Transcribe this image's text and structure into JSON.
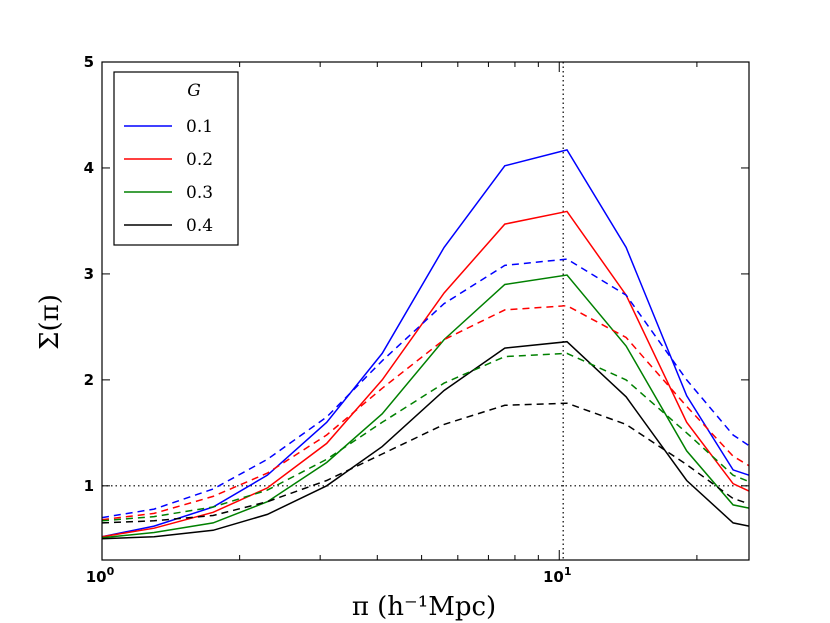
{
  "chart_data": {
    "type": "line",
    "xscale": "log",
    "xlim": [
      1,
      26
    ],
    "ylim": [
      0.3,
      5
    ],
    "xlabel": "π  (h⁻¹Mpc)",
    "ylabel": "Σ(π)",
    "xticks": [
      {
        "value": 1,
        "base": "10",
        "exp": "0"
      },
      {
        "value": 10,
        "base": "10",
        "exp": "1"
      }
    ],
    "yticks": [
      1,
      2,
      3,
      4,
      5
    ],
    "reference_lines": {
      "horizontal_y": 1,
      "vertical_x": 10.2
    },
    "legend": {
      "title": "G",
      "location": "top-left",
      "entries": [
        "0.1",
        "0.2",
        "0.3",
        "0.4"
      ]
    },
    "x": [
      1.0,
      1.3,
      1.75,
      2.3,
      3.1,
      4.1,
      5.6,
      7.6,
      10.4,
      14.0,
      19.0,
      24.0,
      26.0
    ],
    "series": [
      {
        "name": "0.1",
        "style": "solid",
        "color": "#0000ff",
        "values": [
          0.52,
          0.62,
          0.8,
          1.1,
          1.6,
          2.25,
          3.25,
          4.02,
          4.17,
          3.25,
          1.85,
          1.15,
          1.1
        ]
      },
      {
        "name": "0.2",
        "style": "solid",
        "color": "#ff0000",
        "values": [
          0.52,
          0.6,
          0.75,
          0.98,
          1.4,
          2.0,
          2.82,
          3.47,
          3.59,
          2.8,
          1.6,
          1.02,
          0.95
        ]
      },
      {
        "name": "0.3",
        "style": "solid",
        "color": "#008000",
        "values": [
          0.51,
          0.56,
          0.65,
          0.85,
          1.22,
          1.68,
          2.38,
          2.9,
          2.99,
          2.32,
          1.33,
          0.82,
          0.79
        ]
      },
      {
        "name": "0.4",
        "style": "solid",
        "color": "#000000",
        "values": [
          0.5,
          0.52,
          0.58,
          0.73,
          1.0,
          1.37,
          1.9,
          2.3,
          2.36,
          1.84,
          1.05,
          0.65,
          0.62
        ]
      },
      {
        "name": "0.1",
        "style": "dashed",
        "color": "#0000ff",
        "values": [
          0.7,
          0.78,
          0.97,
          1.25,
          1.65,
          2.18,
          2.72,
          3.08,
          3.14,
          2.8,
          2.0,
          1.48,
          1.38
        ]
      },
      {
        "name": "0.2",
        "style": "dashed",
        "color": "#ff0000",
        "values": [
          0.68,
          0.74,
          0.9,
          1.12,
          1.48,
          1.92,
          2.38,
          2.66,
          2.7,
          2.4,
          1.75,
          1.28,
          1.19
        ]
      },
      {
        "name": "0.3",
        "style": "dashed",
        "color": "#008000",
        "values": [
          0.67,
          0.71,
          0.8,
          0.96,
          1.25,
          1.6,
          1.97,
          2.22,
          2.25,
          2.0,
          1.5,
          1.1,
          1.04
        ]
      },
      {
        "name": "0.4",
        "style": "dashed",
        "color": "#000000",
        "values": [
          0.65,
          0.67,
          0.72,
          0.85,
          1.05,
          1.3,
          1.58,
          1.76,
          1.78,
          1.58,
          1.2,
          0.88,
          0.83
        ]
      }
    ]
  }
}
